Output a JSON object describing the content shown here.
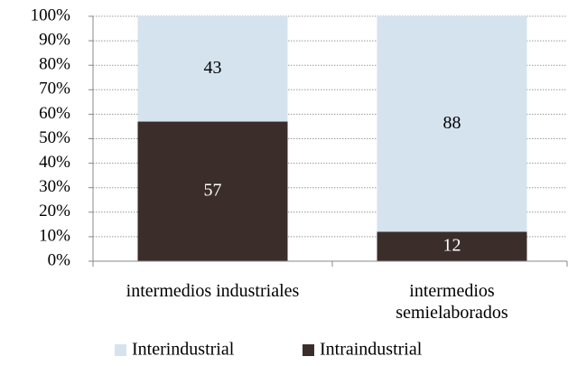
{
  "chart_data": {
    "type": "stacked_bar",
    "categories": [
      "intermedios industriales",
      "intermedios\nsemielaborados"
    ],
    "series": [
      {
        "name": "Interindustrial",
        "color": "#d5e3ef",
        "values": [
          43,
          88
        ]
      },
      {
        "name": "Intraindustrial",
        "color": "#3b2e2a",
        "values": [
          57,
          12
        ]
      }
    ],
    "ylim": [
      0,
      100
    ],
    "yticks": [
      {
        "value": 0,
        "label": "0%"
      },
      {
        "value": 10,
        "label": "10%"
      },
      {
        "value": 20,
        "label": "20%"
      },
      {
        "value": 30,
        "label": "30%"
      },
      {
        "value": 40,
        "label": "40%"
      },
      {
        "value": 50,
        "label": "50%"
      },
      {
        "value": 60,
        "label": "60%"
      },
      {
        "value": 70,
        "label": "70%"
      },
      {
        "value": 80,
        "label": "80%"
      },
      {
        "value": 90,
        "label": "90%"
      },
      {
        "value": 100,
        "label": "100%"
      }
    ],
    "grid": true,
    "legend": "bottom"
  }
}
